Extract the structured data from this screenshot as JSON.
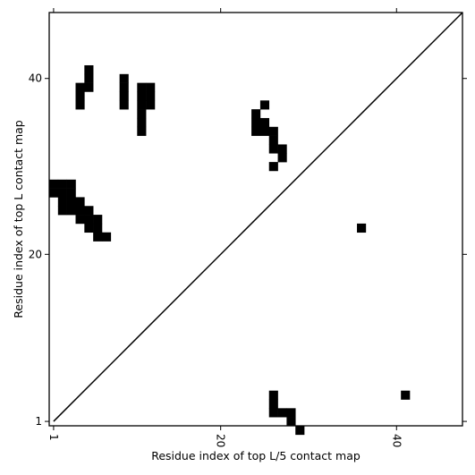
{
  "chart_data": {
    "type": "heatmap",
    "title": "",
    "xlabel": "Residue index of top L/5 contact map",
    "ylabel": "Residue index of top L contact map",
    "xlim": [
      0.5,
      47.5
    ],
    "ylim": [
      0.5,
      47.5
    ],
    "x_ticks": [
      1,
      20,
      40
    ],
    "y_ticks": [
      1,
      20,
      40
    ],
    "x_tick_labels": [
      "1",
      "20",
      "40"
    ],
    "y_tick_labels": [
      "1",
      "20",
      "40"
    ],
    "x_tick_rotation": 90,
    "diagonal": true,
    "grid": false,
    "cell_color": "#000000",
    "background_color": "#ffffff",
    "upper_triangle_cells": [
      [
        5,
        40
      ],
      [
        5,
        41
      ],
      [
        4,
        39
      ],
      [
        5,
        39
      ],
      [
        4,
        38
      ],
      [
        4,
        37
      ],
      [
        9,
        37
      ],
      [
        9,
        38
      ],
      [
        9,
        39
      ],
      [
        9,
        40
      ],
      [
        11,
        39
      ],
      [
        12,
        39
      ],
      [
        11,
        38
      ],
      [
        12,
        38
      ],
      [
        11,
        37
      ],
      [
        12,
        37
      ],
      [
        11,
        36
      ],
      [
        11,
        35
      ],
      [
        11,
        34
      ],
      [
        25,
        37
      ],
      [
        24,
        36
      ],
      [
        24,
        35
      ],
      [
        25,
        35
      ],
      [
        24,
        34
      ],
      [
        25,
        34
      ],
      [
        26,
        34
      ],
      [
        26,
        33
      ],
      [
        26,
        32
      ],
      [
        27,
        32
      ],
      [
        27,
        31
      ],
      [
        26,
        30
      ],
      [
        1,
        28
      ],
      [
        2,
        28
      ],
      [
        3,
        28
      ],
      [
        1,
        27
      ],
      [
        2,
        27
      ],
      [
        3,
        27
      ],
      [
        2,
        26
      ],
      [
        3,
        26
      ],
      [
        4,
        26
      ],
      [
        2,
        25
      ],
      [
        3,
        25
      ],
      [
        4,
        25
      ],
      [
        5,
        25
      ],
      [
        4,
        24
      ],
      [
        5,
        24
      ],
      [
        6,
        24
      ],
      [
        5,
        23
      ],
      [
        6,
        23
      ],
      [
        6,
        22
      ],
      [
        7,
        22
      ]
    ],
    "lower_triangle_cells": [
      [
        36,
        23
      ],
      [
        41,
        4
      ],
      [
        26,
        4
      ],
      [
        26,
        3
      ],
      [
        26,
        2
      ],
      [
        27,
        2
      ],
      [
        28,
        2
      ],
      [
        28,
        1
      ],
      [
        29,
        0
      ]
    ]
  }
}
